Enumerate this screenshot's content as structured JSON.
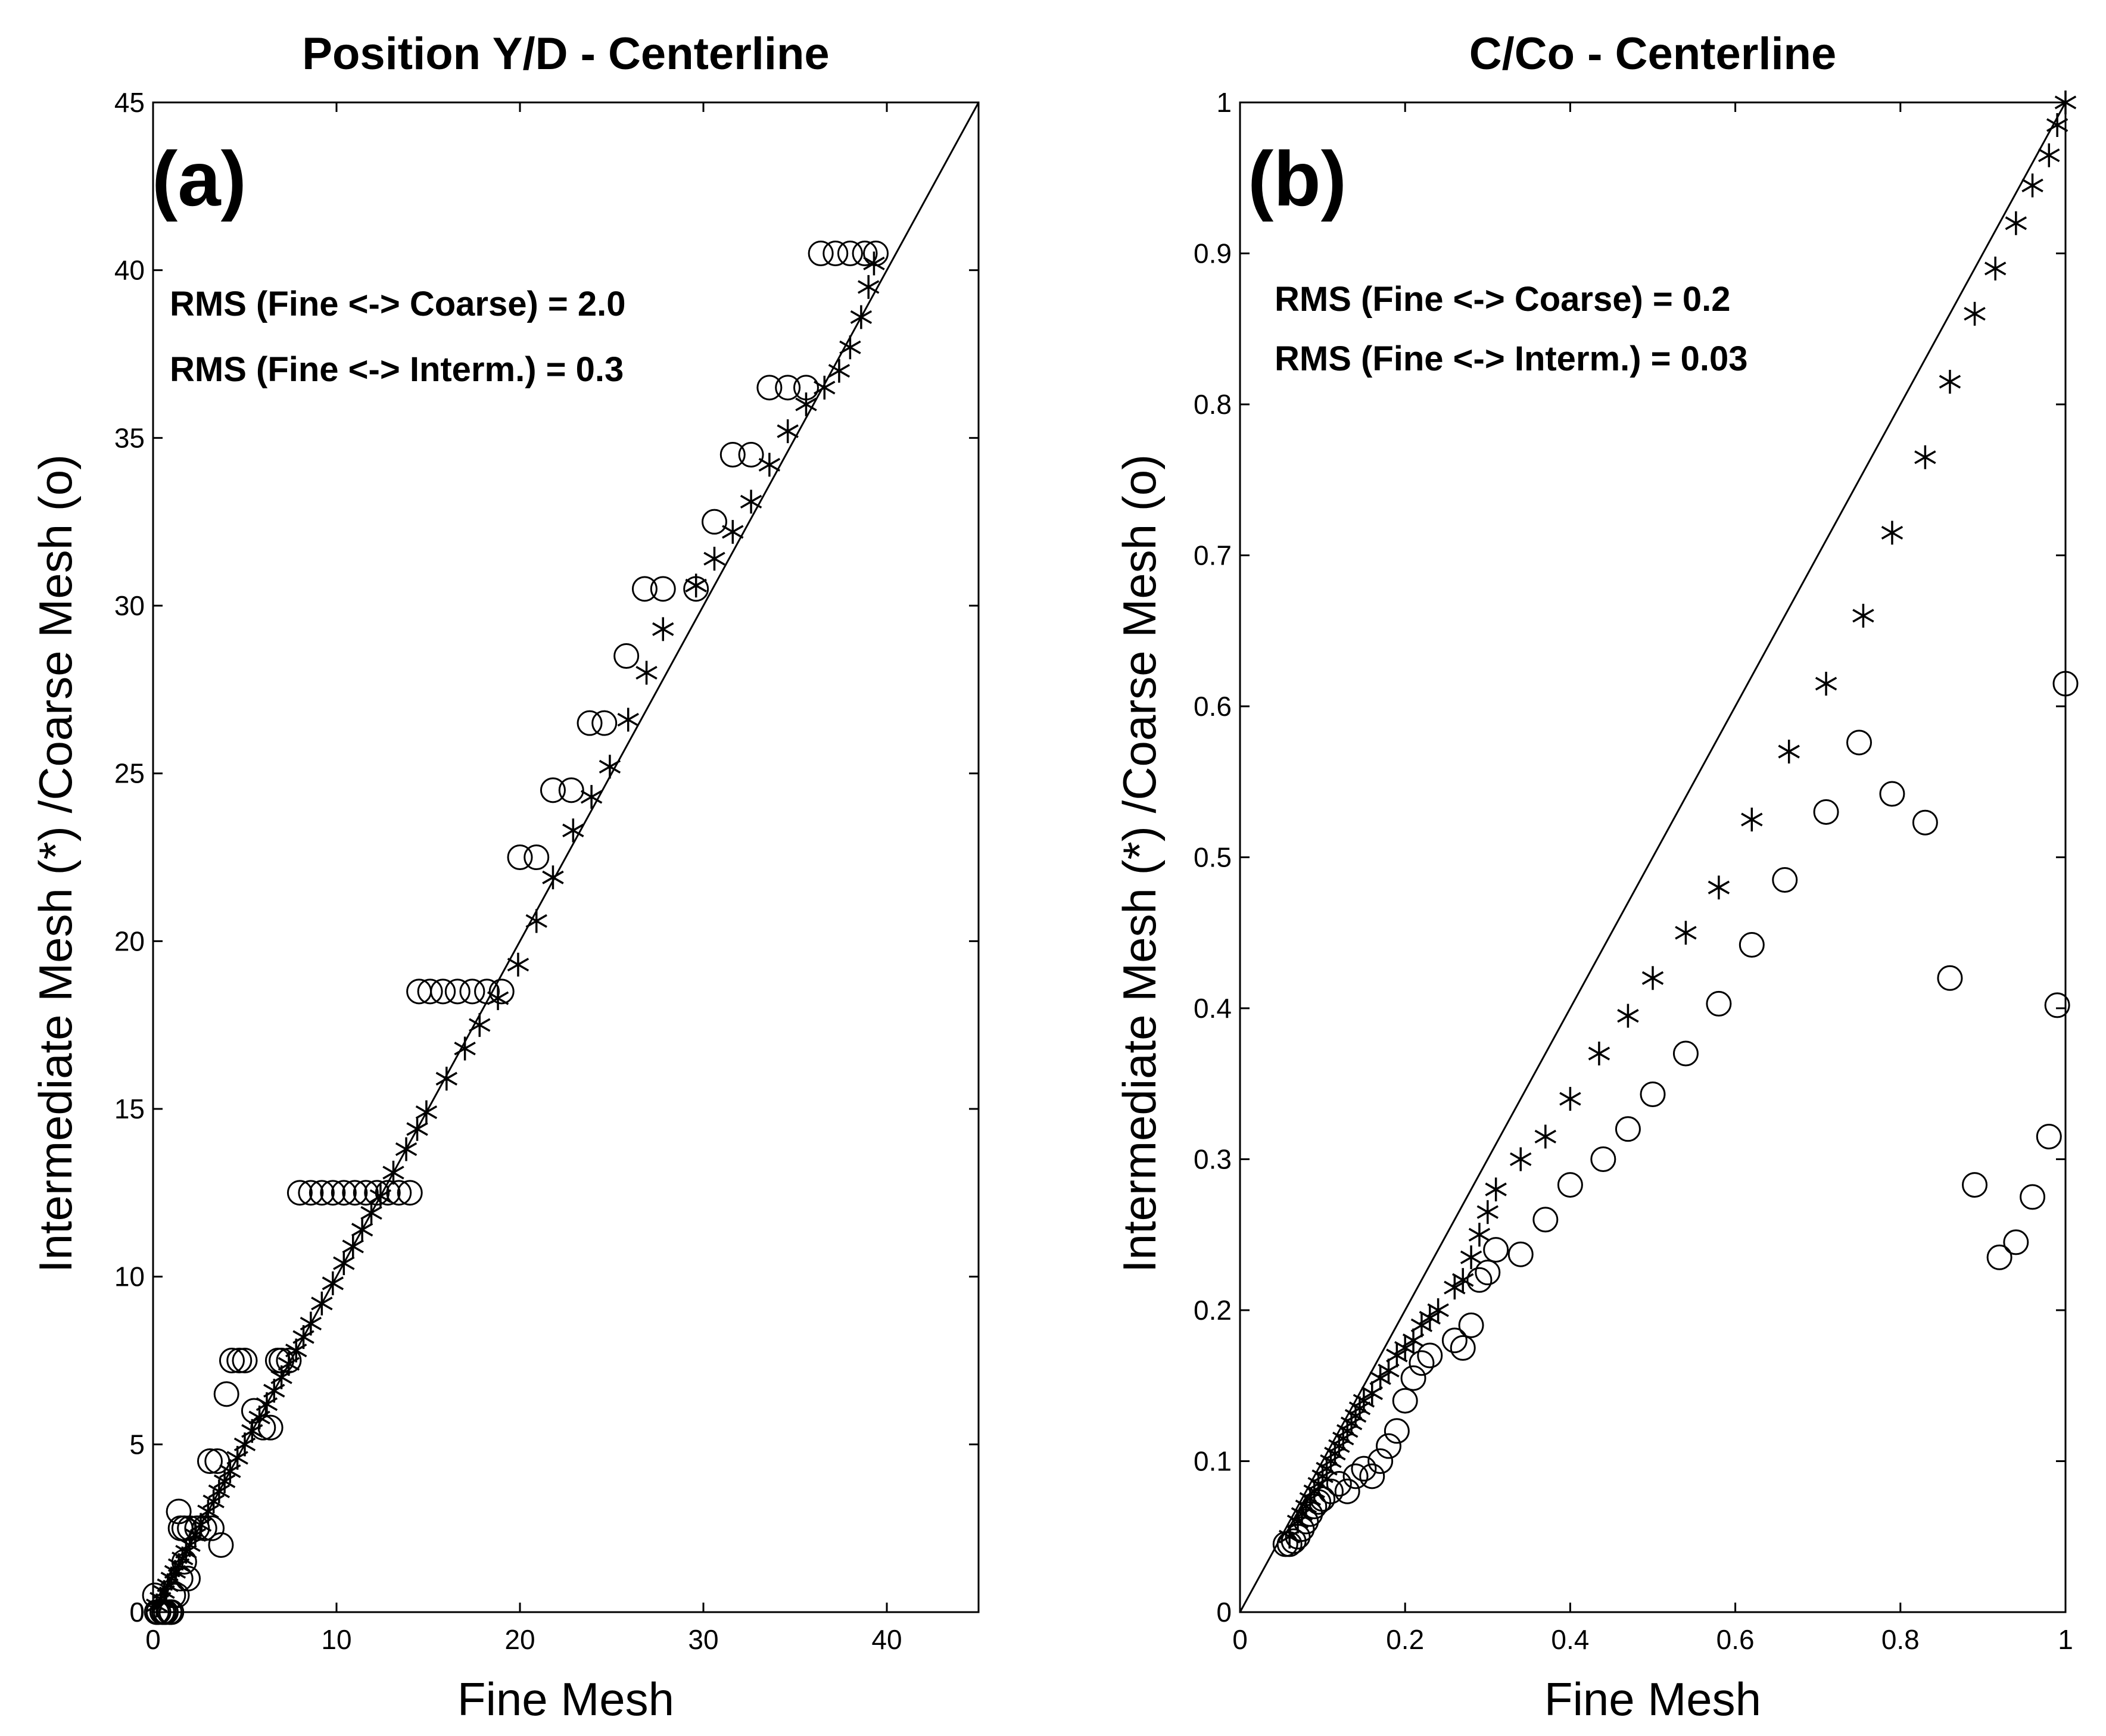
{
  "chart_data": [
    {
      "type": "scatter",
      "title": "Position Y/D - Centerline",
      "panel_label": "(a)",
      "xlabel": "Fine Mesh",
      "ylabel": "Intermediate Mesh (*) /Coarse Mesh (o)",
      "xlim": [
        0,
        45
      ],
      "ylim": [
        0,
        45
      ],
      "xticks": [
        "0",
        "10",
        "20",
        "30",
        "40"
      ],
      "yticks": [
        "0",
        "5",
        "10",
        "15",
        "20",
        "25",
        "30",
        "35",
        "40",
        "45"
      ],
      "grid": false,
      "reference_line": "y = x",
      "annotations": [
        "RMS (Fine <-> Coarse) = 2.0",
        "RMS (Fine <-> Interm.) = 0.3"
      ],
      "series": [
        {
          "name": "Intermediate Mesh (*)",
          "marker": "star",
          "x": [
            0.2,
            0.4,
            0.6,
            0.8,
            1.0,
            1.2,
            1.4,
            1.6,
            1.8,
            2.0,
            2.3,
            2.6,
            3.0,
            3.3,
            3.6,
            3.9,
            4.2,
            4.6,
            5.0,
            5.4,
            5.8,
            6.2,
            6.6,
            7.0,
            7.4,
            7.8,
            8.2,
            8.6,
            9.2,
            9.8,
            10.4,
            10.9,
            11.4,
            11.9,
            12.4,
            13.1,
            13.8,
            14.4,
            14.9,
            16.0,
            17.0,
            17.8,
            18.8,
            19.9,
            20.9,
            21.8,
            22.9,
            23.9,
            24.9,
            25.9,
            26.9,
            27.8,
            29.6,
            30.6,
            31.6,
            32.6,
            33.6,
            34.6,
            35.6,
            36.6,
            37.4,
            38.0,
            38.6,
            39.0,
            39.3
          ],
          "y": [
            0.2,
            0.4,
            0.6,
            0.8,
            1.0,
            1.2,
            1.4,
            1.6,
            1.8,
            2.0,
            2.3,
            2.6,
            3.0,
            3.3,
            3.6,
            3.9,
            4.2,
            4.6,
            5.0,
            5.4,
            5.8,
            6.2,
            6.6,
            7.0,
            7.4,
            7.8,
            8.2,
            8.6,
            9.2,
            9.8,
            10.4,
            10.9,
            11.4,
            11.9,
            12.4,
            13.1,
            13.8,
            14.4,
            14.9,
            15.9,
            16.8,
            17.5,
            18.3,
            19.3,
            20.6,
            21.9,
            23.3,
            24.3,
            25.2,
            26.6,
            28.0,
            29.3,
            30.6,
            31.4,
            32.2,
            33.1,
            34.2,
            35.2,
            36.0,
            36.5,
            37.0,
            37.7,
            38.6,
            39.5,
            40.2
          ]
        },
        {
          "name": "Coarse Mesh (o)",
          "marker": "circle",
          "x": [
            0.1,
            0.3,
            0.5,
            0.7,
            0.9,
            1.1,
            1.3,
            1.5,
            1.7,
            1.9,
            0.2,
            0.6,
            1.0,
            1.4,
            1.5,
            1.7,
            2.0,
            2.4,
            2.8,
            3.2,
            3.1,
            3.5,
            3.7,
            4.0,
            4.3,
            4.7,
            5.0,
            5.5,
            6.0,
            6.4,
            7.0,
            7.4,
            6.8,
            8.0,
            8.6,
            9.2,
            9.8,
            10.4,
            11.0,
            11.6,
            12.2,
            12.8,
            13.4,
            14.0,
            14.5,
            15.1,
            15.8,
            16.6,
            17.4,
            18.2,
            19.0,
            20.0,
            20.9,
            21.8,
            22.8,
            23.8,
            24.6,
            25.8,
            26.8,
            27.8,
            29.6,
            30.6,
            31.6,
            32.6,
            33.6,
            34.6,
            35.6,
            36.4,
            37.2,
            38.0,
            38.8,
            39.4
          ],
          "y": [
            0.5,
            0.0,
            0.0,
            0.0,
            0.0,
            0.5,
            0.5,
            1.0,
            1.5,
            1.0,
            0.0,
            0.0,
            0.0,
            3.0,
            2.5,
            2.5,
            2.5,
            2.5,
            2.5,
            2.5,
            4.5,
            4.5,
            2.0,
            6.5,
            7.5,
            7.5,
            7.5,
            6.0,
            5.5,
            5.5,
            7.5,
            7.5,
            7.5,
            12.5,
            12.5,
            12.5,
            12.5,
            12.5,
            12.5,
            12.5,
            12.5,
            12.5,
            12.5,
            12.5,
            18.5,
            18.5,
            18.5,
            18.5,
            18.5,
            18.5,
            18.5,
            22.5,
            22.5,
            24.5,
            24.5,
            26.5,
            26.5,
            28.5,
            30.5,
            30.5,
            30.5,
            32.5,
            34.5,
            34.5,
            36.5,
            36.5,
            36.5,
            40.5,
            40.5,
            40.5,
            40.5,
            40.5
          ]
        }
      ]
    },
    {
      "type": "scatter",
      "title": "C/Co - Centerline",
      "panel_label": "(b)",
      "xlabel": "Fine Mesh",
      "ylabel": "Intermediate Mesh (*) /Coarse Mesh (o)",
      "xlim": [
        0,
        1
      ],
      "ylim": [
        0,
        1
      ],
      "xticks": [
        "0",
        "0.2",
        "0.4",
        "0.6",
        "0.8",
        "1"
      ],
      "yticks": [
        "0",
        "0.1",
        "0.2",
        "0.3",
        "0.4",
        "0.5",
        "0.6",
        "0.7",
        "0.8",
        "0.9",
        "1"
      ],
      "grid": false,
      "reference_line": "y = x",
      "annotations": [
        "RMS (Fine <-> Coarse) = 0.2",
        "RMS (Fine <-> Interm.) = 0.03"
      ],
      "series": [
        {
          "name": "Intermediate Mesh (*)",
          "marker": "star",
          "x": [
            0.06,
            0.07,
            0.075,
            0.08,
            0.085,
            0.09,
            0.095,
            0.1,
            0.105,
            0.11,
            0.115,
            0.12,
            0.125,
            0.13,
            0.135,
            0.14,
            0.145,
            0.15,
            0.16,
            0.17,
            0.18,
            0.19,
            0.2,
            0.21,
            0.22,
            0.23,
            0.24,
            0.26,
            0.27,
            0.28,
            0.29,
            0.3,
            0.31,
            0.34,
            0.37,
            0.4,
            0.435,
            0.47,
            0.5,
            0.54,
            0.58,
            0.62,
            0.665,
            0.71,
            0.755,
            0.79,
            0.83,
            0.86,
            0.89,
            0.915,
            0.94,
            0.96,
            0.98,
            0.99,
            1.0
          ],
          "y": [
            0.05,
            0.06,
            0.065,
            0.07,
            0.075,
            0.08,
            0.085,
            0.09,
            0.095,
            0.1,
            0.105,
            0.11,
            0.115,
            0.12,
            0.125,
            0.13,
            0.135,
            0.14,
            0.145,
            0.155,
            0.16,
            0.17,
            0.175,
            0.18,
            0.19,
            0.195,
            0.2,
            0.215,
            0.22,
            0.235,
            0.25,
            0.265,
            0.28,
            0.3,
            0.315,
            0.34,
            0.37,
            0.395,
            0.42,
            0.45,
            0.48,
            0.525,
            0.57,
            0.615,
            0.66,
            0.715,
            0.765,
            0.815,
            0.86,
            0.89,
            0.92,
            0.945,
            0.965,
            0.985,
            1.0
          ]
        },
        {
          "name": "Coarse Mesh (o)",
          "marker": "circle",
          "x": [
            0.055,
            0.06,
            0.065,
            0.07,
            0.075,
            0.08,
            0.085,
            0.09,
            0.095,
            0.1,
            0.11,
            0.12,
            0.13,
            0.14,
            0.15,
            0.16,
            0.17,
            0.18,
            0.19,
            0.2,
            0.21,
            0.22,
            0.23,
            0.26,
            0.27,
            0.28,
            0.29,
            0.3,
            0.31,
            0.34,
            0.37,
            0.4,
            0.44,
            0.47,
            0.5,
            0.54,
            0.58,
            0.62,
            0.66,
            0.71,
            0.75,
            0.79,
            0.83,
            0.86,
            0.89,
            0.92,
            0.94,
            0.96,
            0.98,
            0.99,
            1.0
          ],
          "y": [
            0.045,
            0.045,
            0.047,
            0.05,
            0.055,
            0.06,
            0.065,
            0.07,
            0.073,
            0.075,
            0.08,
            0.085,
            0.08,
            0.09,
            0.095,
            0.09,
            0.1,
            0.11,
            0.12,
            0.14,
            0.155,
            0.165,
            0.17,
            0.18,
            0.175,
            0.19,
            0.22,
            0.225,
            0.24,
            0.237,
            0.26,
            0.283,
            0.3,
            0.32,
            0.343,
            0.37,
            0.403,
            0.442,
            0.485,
            0.53,
            0.576,
            0.542,
            0.523,
            0.42,
            0.283,
            0.235,
            0.245,
            0.275,
            0.315,
            0.402,
            0.615
          ]
        }
      ]
    }
  ]
}
